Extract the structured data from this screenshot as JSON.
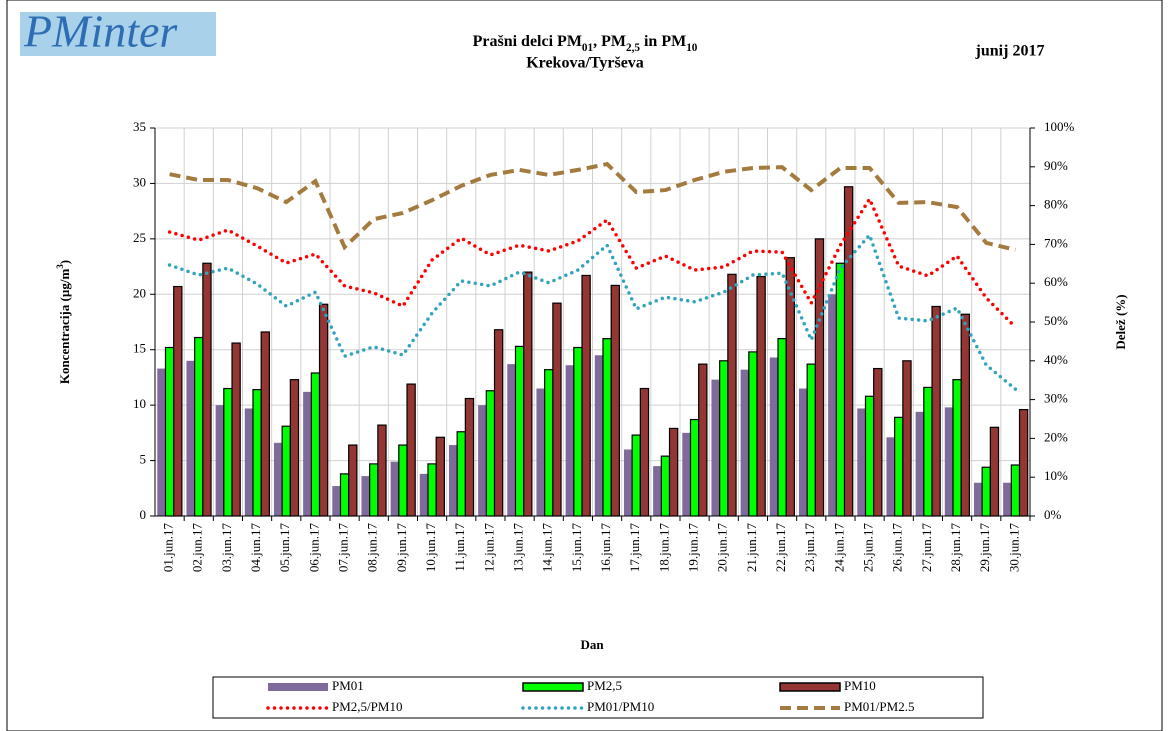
{
  "logo": "PMinter",
  "chart_data": {
    "type": "bar",
    "title": "Prašni delci PM01, PM2,5 in PM10",
    "subtitle": "Krekova/Tyrševa",
    "date": "junij 2017",
    "x_label": "Dan",
    "y_label": "Koncentracija  (µg/m3)",
    "y2_label": "Delež (%)",
    "categories": [
      "01.jun.17",
      "02.jun.17",
      "03.jun.17",
      "04.jun.17",
      "05.jun.17",
      "06.jun.17",
      "07.jun.17",
      "08.jun.17",
      "09.jun.17",
      "10.jun.17",
      "11.jun.17",
      "12.jun.17",
      "13.jun.17",
      "14.jun.17",
      "15.jun.17",
      "16.jun.17",
      "17.jun.17",
      "18.jun.17",
      "19.jun.17",
      "20.jun.17",
      "21.jun.17",
      "22.jun.17",
      "23.jun.17",
      "24.jun.17",
      "25.jun.17",
      "26.jun.17",
      "27.jun.17",
      "28.jun.17",
      "29.jun.17",
      "30.jun.17"
    ],
    "ylim": [
      0,
      35
    ],
    "yticks": [
      0,
      5,
      10,
      15,
      20,
      25,
      30,
      35
    ],
    "y2lim": [
      0,
      100
    ],
    "y2ticks": [
      {
        "value": 0,
        "label": "0%"
      },
      {
        "value": 10,
        "label": "10%"
      },
      {
        "value": 20,
        "label": "20%"
      },
      {
        "value": 30,
        "label": "30%"
      },
      {
        "value": 40,
        "label": "40%"
      },
      {
        "value": 50,
        "label": "50%"
      },
      {
        "value": 60,
        "label": "60%"
      },
      {
        "value": 70,
        "label": "70%"
      },
      {
        "value": 80,
        "label": "80%"
      },
      {
        "value": 90,
        "label": "90%"
      },
      {
        "value": 100,
        "label": "100%"
      }
    ],
    "grid": true,
    "legend": "bottom",
    "series": [
      {
        "name": "PM01",
        "kind": "bar",
        "color": "#7f6a9c",
        "values": [
          13.3,
          14.0,
          10.0,
          9.7,
          6.6,
          11.2,
          2.7,
          3.6,
          4.9,
          3.8,
          6.4,
          10.0,
          13.7,
          11.5,
          13.6,
          14.5,
          6.0,
          4.5,
          7.5,
          12.3,
          13.2,
          14.3,
          11.5,
          20.0,
          9.7,
          7.1,
          9.4,
          9.8,
          3.0,
          3.0
        ]
      },
      {
        "name": "PM2,5",
        "kind": "bar",
        "color": "#00ff00",
        "values": [
          15.2,
          16.1,
          11.5,
          11.4,
          8.1,
          12.9,
          3.8,
          4.7,
          6.4,
          4.7,
          7.6,
          11.3,
          15.3,
          13.2,
          15.2,
          16.0,
          7.3,
          5.4,
          8.7,
          14.0,
          14.8,
          16.0,
          13.7,
          22.8,
          10.8,
          8.9,
          11.6,
          12.3,
          4.4,
          4.6
        ]
      },
      {
        "name": "PM10",
        "kind": "bar",
        "color": "#943634",
        "values": [
          20.7,
          22.8,
          15.6,
          16.6,
          12.3,
          19.1,
          6.4,
          8.2,
          11.9,
          7.1,
          10.6,
          16.8,
          22.0,
          19.2,
          21.7,
          20.8,
          11.5,
          7.9,
          13.7,
          21.8,
          21.6,
          23.3,
          25.0,
          29.7,
          13.3,
          14.0,
          18.9,
          18.2,
          8.0,
          9.6
        ]
      },
      {
        "name": "PM2,5/PM10",
        "kind": "dotted",
        "axis": "y2",
        "color": "#ff0000",
        "values": [
          73.2,
          71.1,
          73.7,
          69.6,
          65.2,
          67.5,
          59.3,
          57.5,
          54.1,
          66.0,
          71.6,
          67.3,
          69.8,
          68.3,
          70.9,
          76.3,
          63.9,
          67.0,
          63.4,
          64.2,
          68.3,
          68.0,
          54.9,
          69.8,
          81.7,
          64.4,
          61.9,
          67.0,
          56.2,
          48.7
        ]
      },
      {
        "name": "PM01/PM10",
        "kind": "dotted",
        "axis": "y2",
        "color": "#31a3bd",
        "values": [
          64.7,
          62.1,
          63.9,
          59.8,
          54.1,
          57.7,
          41.2,
          43.6,
          41.5,
          52.3,
          60.6,
          59.3,
          62.9,
          60.1,
          63.4,
          69.8,
          53.4,
          56.4,
          55.2,
          57.7,
          62.1,
          62.6,
          45.4,
          63.9,
          72.4,
          51.0,
          50.3,
          53.6,
          38.9,
          32.7
        ]
      },
      {
        "name": "PM01/PM2.5",
        "kind": "dashed",
        "axis": "y2",
        "color": "#a47b3e",
        "values": [
          88.1,
          86.6,
          86.6,
          84.5,
          80.9,
          86.3,
          69.3,
          76.5,
          78.1,
          81.4,
          85.1,
          87.9,
          89.2,
          87.9,
          89.2,
          90.7,
          83.5,
          84.0,
          86.6,
          88.7,
          89.7,
          89.9,
          84.0,
          89.7,
          89.7,
          80.7,
          80.9,
          79.6,
          70.4,
          68.6
        ]
      }
    ]
  }
}
